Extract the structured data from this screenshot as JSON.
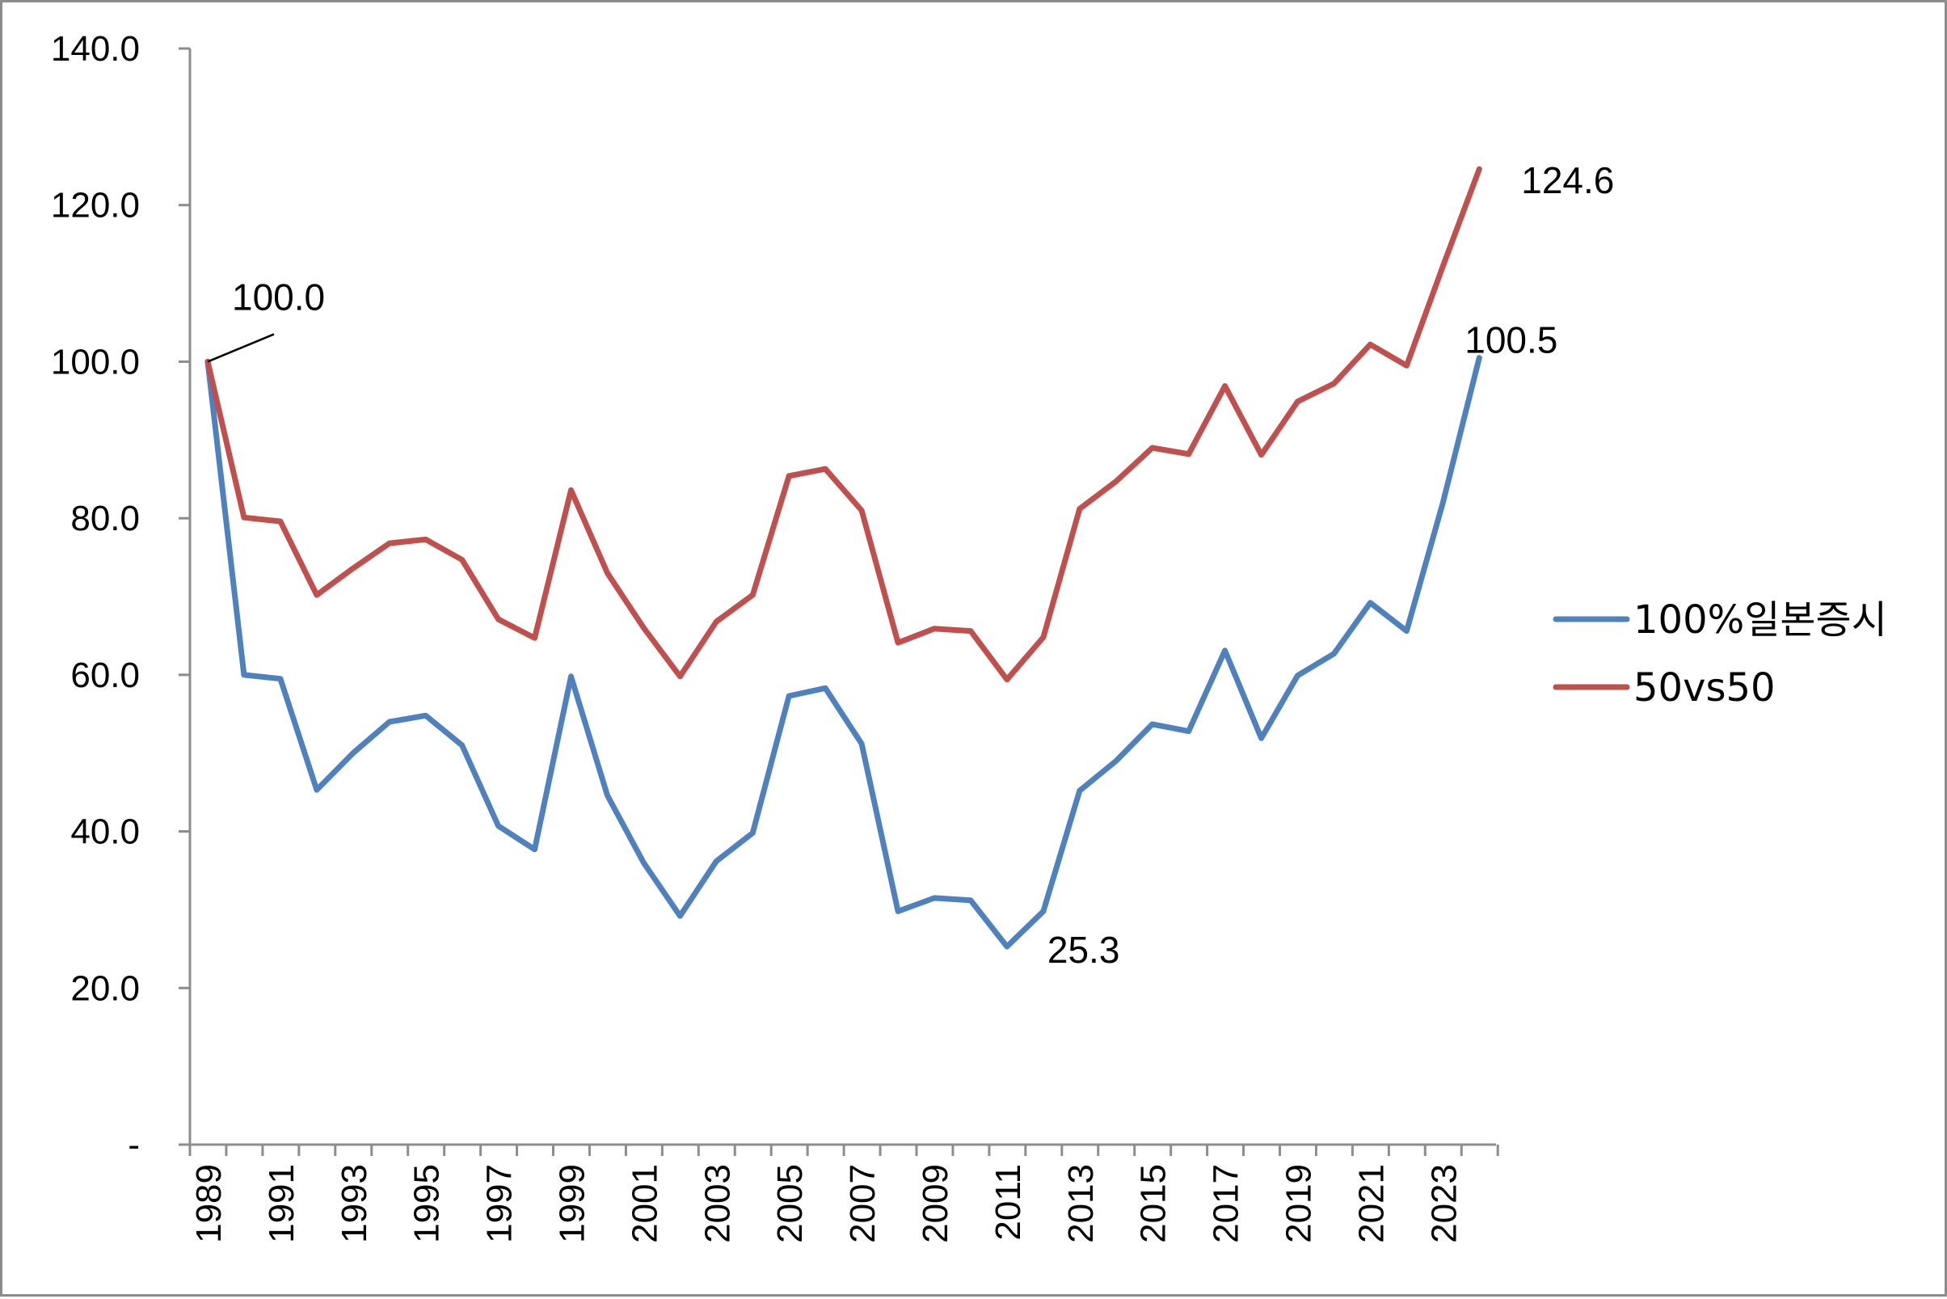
{
  "chart_data": {
    "type": "line",
    "title": "",
    "xlabel": "",
    "ylabel": "",
    "ylim": [
      0,
      140
    ],
    "y_ticks": [
      0,
      20,
      40,
      60,
      80,
      100,
      120,
      140
    ],
    "y_tick_labels": [
      "-",
      "20.0",
      "40.0",
      "60.0",
      "80.0",
      "100.0",
      "120.0",
      "140.0"
    ],
    "x": [
      1989,
      1990,
      1991,
      1992,
      1993,
      1994,
      1995,
      1996,
      1997,
      1998,
      1999,
      2000,
      2001,
      2002,
      2003,
      2004,
      2005,
      2006,
      2007,
      2008,
      2009,
      2010,
      2011,
      2012,
      2013,
      2014,
      2015,
      2016,
      2017,
      2018,
      2019,
      2020,
      2021,
      2022,
      2023,
      2024
    ],
    "x_tick_labels": [
      "1989",
      "1991",
      "1993",
      "1995",
      "1997",
      "1999",
      "2001",
      "2003",
      "2005",
      "2007",
      "2009",
      "2011",
      "2013",
      "2015",
      "2017",
      "2019",
      "2021",
      "2023"
    ],
    "grid": false,
    "legend_position": "right",
    "series": [
      {
        "name": "100%일본증시",
        "color": "#4f81bd",
        "values": [
          100.0,
          60.0,
          59.5,
          45.3,
          50.0,
          54.0,
          54.8,
          51.0,
          40.7,
          37.7,
          59.8,
          44.6,
          36.0,
          29.2,
          36.2,
          39.8,
          57.3,
          58.3,
          51.2,
          29.8,
          31.5,
          31.2,
          25.3,
          29.8,
          45.2,
          49.0,
          53.7,
          52.8,
          63.1,
          51.9,
          59.9,
          62.7,
          69.2,
          65.6,
          82.0,
          100.5
        ]
      },
      {
        "name": "50vs50",
        "color": "#c0504d",
        "values": [
          100.0,
          80.1,
          79.6,
          70.2,
          73.6,
          76.8,
          77.3,
          74.7,
          67.1,
          64.7,
          83.6,
          73.0,
          66.0,
          59.8,
          66.8,
          70.2,
          85.4,
          86.3,
          81.0,
          64.1,
          65.9,
          65.6,
          59.4,
          64.8,
          81.2,
          84.7,
          89.0,
          88.2,
          96.9,
          88.1,
          94.9,
          97.2,
          102.2,
          99.5,
          112.2,
          124.6
        ]
      }
    ],
    "annotations": [
      {
        "text": "100.0",
        "x": 1989,
        "y": 100.0,
        "series": "50vs50",
        "leader_line": true
      },
      {
        "text": "124.6",
        "x": 2024,
        "y": 124.6,
        "series": "50vs50"
      },
      {
        "text": "100.5",
        "x": 2024,
        "y": 100.5,
        "series": "100%일본증시"
      },
      {
        "text": "25.3",
        "x": 2011,
        "y": 25.3,
        "series": "100%일본증시"
      }
    ]
  }
}
